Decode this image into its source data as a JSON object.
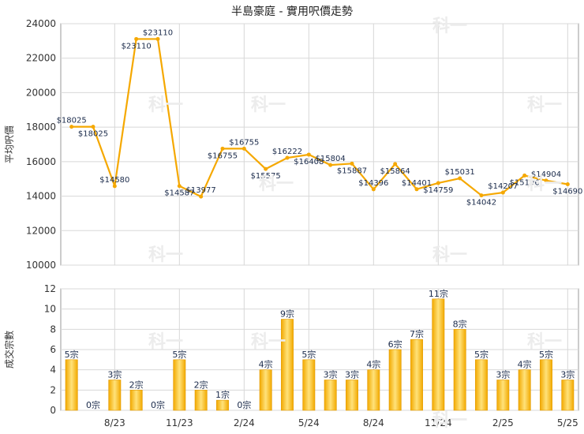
{
  "chart_data": [
    {
      "type": "line",
      "title": "半島豪庭 - 實用呎價走勢",
      "ylabel": "平均呎價",
      "ylim": [
        10000,
        24000
      ],
      "yticks": [
        "10000",
        "12000",
        "14000",
        "16000",
        "18000",
        "20000",
        "22000",
        "24000"
      ],
      "grid": true,
      "line_color": "#f5a800",
      "values": [
        18025,
        18025,
        14580,
        23110,
        23110,
        14587,
        13977,
        16755,
        16755,
        15575,
        16222,
        16408,
        15804,
        15887,
        14396,
        15864,
        14401,
        14759,
        15031,
        14042,
        14207,
        15196,
        14904,
        14690
      ],
      "point_labels": [
        "$18025",
        "$18025",
        "$14580",
        "$23110",
        "$23110",
        "$14587",
        "$13977",
        "$16755",
        "$16755",
        "$15575",
        "$16222",
        "$16408",
        "$15804",
        "$15887",
        "$14396",
        "$15864",
        "$14401",
        "$14759",
        "$15031",
        "$14042",
        "$14207",
        "$15196",
        "$14904",
        "$14690"
      ]
    },
    {
      "type": "bar",
      "ylabel": "成交宗數",
      "ylim": [
        0,
        12
      ],
      "yticks": [
        "0",
        "2",
        "4",
        "6",
        "8",
        "10",
        "12"
      ],
      "grid": true,
      "bar_color": "#f5b400",
      "values": [
        5,
        0,
        3,
        2,
        0,
        5,
        2,
        1,
        0,
        4,
        9,
        5,
        3,
        3,
        4,
        6,
        7,
        11,
        8,
        5,
        3,
        4,
        5,
        3
      ],
      "value_labels": [
        "5宗",
        "0宗",
        "3宗",
        "2宗",
        "0宗",
        "5宗",
        "2宗",
        "1宗",
        "0宗",
        "4宗",
        "9宗",
        "5宗",
        "3宗",
        "3宗",
        "4宗",
        "6宗",
        "7宗",
        "11宗",
        "8宗",
        "5宗",
        "3宗",
        "4宗",
        "5宗",
        "3宗"
      ],
      "x_tick_labels": [
        "8/23",
        "11/23",
        "2/24",
        "5/24",
        "8/24",
        "11/24",
        "2/25",
        "5/25"
      ]
    }
  ],
  "watermark": "科一"
}
